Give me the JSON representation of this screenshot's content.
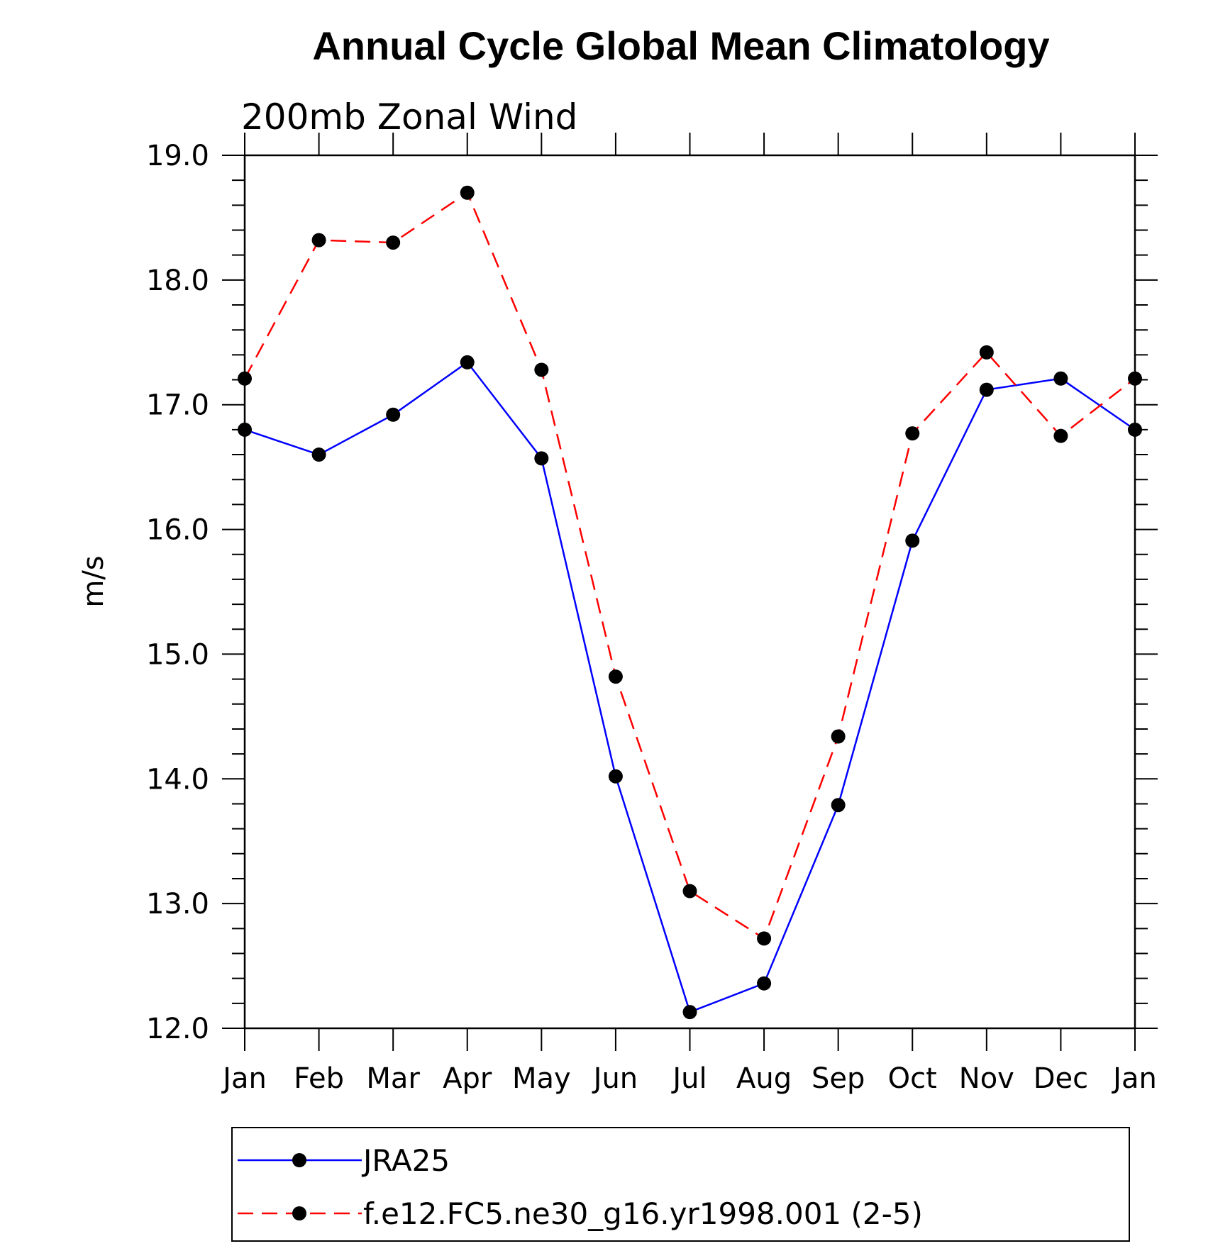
{
  "chart_data": {
    "type": "line",
    "title": "Annual Cycle Global Mean Climatology",
    "subtitle": "200mb Zonal Wind",
    "xlabel": "",
    "ylabel": "m/s",
    "categories": [
      "Jan",
      "Feb",
      "Mar",
      "Apr",
      "May",
      "Jun",
      "Jul",
      "Aug",
      "Sep",
      "Oct",
      "Nov",
      "Dec",
      "Jan"
    ],
    "ylim": [
      12.0,
      19.0
    ],
    "yticks": [
      "12.0",
      "13.0",
      "14.0",
      "15.0",
      "16.0",
      "17.0",
      "18.0",
      "19.0"
    ],
    "grid": false,
    "legend_position": "bottom",
    "series": [
      {
        "name": "JRA25",
        "color": "#0000ff",
        "line_style": "solid",
        "marker": "filled-circle",
        "values": [
          16.8,
          16.6,
          16.92,
          17.34,
          16.57,
          14.02,
          12.13,
          12.36,
          13.79,
          15.91,
          17.12,
          17.21,
          16.8
        ]
      },
      {
        "name": "f.e12.FC5.ne30_g16.yr1998.001 (2-5)",
        "color": "#ff0000",
        "line_style": "dashed",
        "marker": "filled-circle",
        "values": [
          17.21,
          18.32,
          18.3,
          18.7,
          17.28,
          14.82,
          13.1,
          12.72,
          14.34,
          16.77,
          17.42,
          16.75,
          17.21
        ]
      }
    ]
  }
}
